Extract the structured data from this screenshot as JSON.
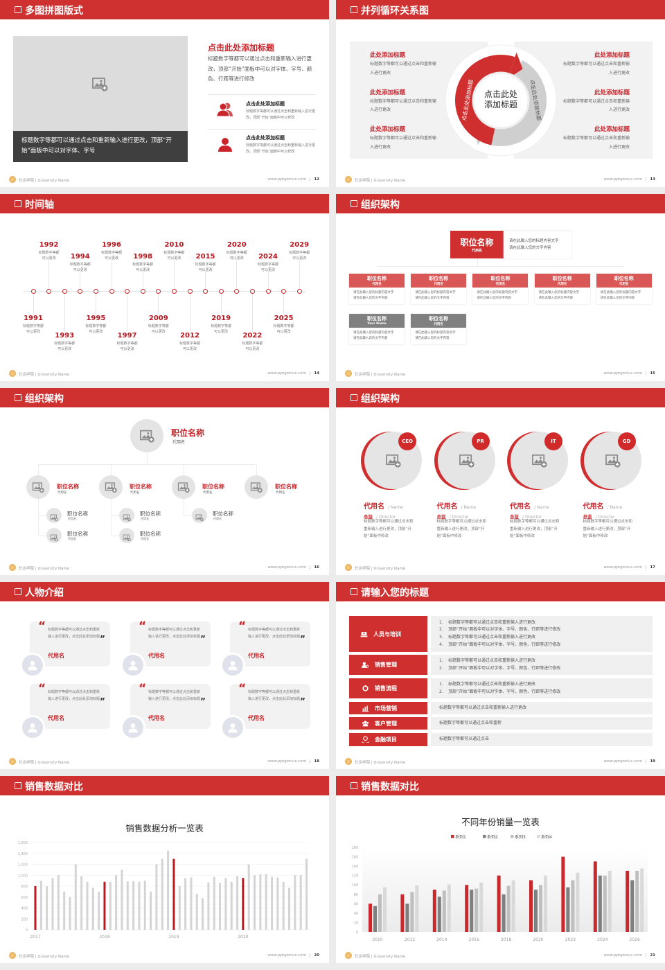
{
  "footer": {
    "school": "长治学院 | University Name",
    "site": "www.pptgenius.com",
    "separator": "|"
  },
  "colors": {
    "accent": "#cf3030",
    "dark_caption": "#3f3f3f",
    "panel": "#f2f2f2",
    "gray_header": "#808080"
  },
  "slides": [
    {
      "title": "多图拼图版式",
      "page": "12",
      "caption": "标题数字等都可以通过点击和重新输入进行更改，顶部“开始”面板中可以对字体、字号",
      "heading": "点击此处添加标题",
      "paragraph": "标题数字等都可以通过点击和重新输入进行更改，顶部“开始”面板中可以对字体、字号、颜色、行距等进行修改",
      "items": [
        {
          "icon": "users-icon",
          "title": "点击此处添加标题",
          "text": "标题数字等都可以通过点击和重新输入进行更改，顶部“开始”面板中可以修改"
        },
        {
          "icon": "user-icon",
          "title": "点击此处添加标题",
          "text": "标题数字等都可以通过点击和重新输入进行更改，顶部“开始”面板中可以修改"
        }
      ]
    },
    {
      "title": "并列循环关系图",
      "page": "13",
      "center_lines": [
        "点击此处",
        "添加标题"
      ],
      "arc_left": "点击此处添加标题",
      "arc_right": "点击此处添加标题",
      "left_items": [
        {
          "title": "此处添加标题",
          "text": "标题数字等都可以通过点击和重新输入进行更改"
        },
        {
          "title": "此处添加标题",
          "text": "标题数字等都可以通过点击和重新输入进行更改"
        },
        {
          "title": "此处添加标题",
          "text": "标题数字等都可以通过点击和重新输入进行更改"
        }
      ],
      "right_items": [
        {
          "title": "此处添加标题",
          "text": "标题数字等都可以通过点击和重新输入进行更改"
        },
        {
          "title": "此处添加标题",
          "text": "标题数字等都可以通过点击和重新输入进行更改"
        },
        {
          "title": "此处添加标题",
          "text": "标题数字等都可以通过点击和重新输入进行更改"
        }
      ]
    },
    {
      "title": "时间轴",
      "page": "14",
      "events": [
        {
          "year": "1991",
          "text": "标题数字等都可以更改"
        },
        {
          "year": "1992",
          "text": "标题数字等都可以更改"
        },
        {
          "year": "1993",
          "text": "标题数字等都可以更改"
        },
        {
          "year": "1994",
          "text": "标题数字等都可以更改"
        },
        {
          "year": "1995",
          "text": "标题数字等都可以更改"
        },
        {
          "year": "1996",
          "text": "标题数字等都可以更改"
        },
        {
          "year": "1997",
          "text": "标题数字等都可以更改"
        },
        {
          "year": "1998",
          "text": "标题数字等都可以更改"
        },
        {
          "year": "2009",
          "text": "标题数字等都可以更改"
        },
        {
          "year": "2010",
          "text": "标题数字等都可以更改"
        },
        {
          "year": "2012",
          "text": "标题数字等都可以更改"
        },
        {
          "year": "2015",
          "text": "标题数字等都可以更改"
        },
        {
          "year": "2019",
          "text": "标题数字等都可以更改"
        },
        {
          "year": "2020",
          "text": "标题数字等都可以更改"
        },
        {
          "year": "2022",
          "text": "标题数字等都可以更改"
        },
        {
          "year": "2024",
          "text": "标题数字等都可以更改"
        },
        {
          "year": "2025",
          "text": "标题数字等都可以更改"
        },
        {
          "year": "2029",
          "text": "标题数字等都可以更改"
        }
      ]
    },
    {
      "title": "组织架构",
      "page": "15",
      "top": {
        "title": "职位名称",
        "sub": "代用名",
        "desc": [
          "请在此输入您的标题内容文字",
          "请在此输入您的文字内容"
        ]
      },
      "boxes": [
        {
          "variant": "red",
          "title": "职位名称",
          "sub": "代用名",
          "desc": [
            "请在此输入您的标题内容文字",
            "请在此输入您的文字内容"
          ]
        },
        {
          "variant": "red",
          "title": "职位名称",
          "sub": "代用名",
          "desc": [
            "请在此输入您的标题内容文字",
            "请在此输入您的文字内容"
          ]
        },
        {
          "variant": "red",
          "title": "职位名称",
          "sub": "代用名",
          "desc": [
            "请在此输入您的标题内容文字",
            "请在此输入您的文字内容"
          ]
        },
        {
          "variant": "red",
          "title": "职位名称",
          "sub": "代用名",
          "desc": [
            "请在此输入您的标题内容文字",
            "请在此输入您的文字内容"
          ]
        },
        {
          "variant": "red",
          "title": "职位名称",
          "sub": "代用名",
          "desc": [
            "请在此输入您的标题内容文字",
            "请在此输入您的文字内容"
          ]
        },
        {
          "variant": "gray",
          "title": "职位名称",
          "sub": "Your Name",
          "desc": [
            "请在此输入您的标题内容文字",
            "请在此输入您的文字内容"
          ]
        },
        {
          "variant": "gray",
          "title": "职位名称",
          "sub": "代用名",
          "desc": [
            "请在此输入您的标题内容文字",
            "请在此输入您的文字内容"
          ]
        }
      ]
    },
    {
      "title": "组织架构",
      "page": "16",
      "top": {
        "title": "职位名称",
        "sub": "代用名"
      },
      "branches": [
        {
          "title": "职位名称",
          "sub": "代用名",
          "children": [
            {
              "title": "职位名称",
              "sub": "代用名"
            },
            {
              "title": "职位名称",
              "sub": "代用名"
            }
          ]
        },
        {
          "title": "职位名称",
          "sub": "代用名",
          "children": [
            {
              "title": "职位名称",
              "sub": "代用名"
            },
            {
              "title": "职位名称",
              "sub": "代用名"
            }
          ]
        },
        {
          "title": "职位名称",
          "sub": "代用名",
          "children": [
            {
              "title": "职位名称",
              "sub": "代用名"
            }
          ]
        },
        {
          "title": "职位名称",
          "sub": "代用名",
          "children": []
        }
      ]
    },
    {
      "title": "组织架构",
      "page": "17",
      "members": [
        {
          "badge": "CEO",
          "name": "代用名",
          "name_en": "/ Name",
          "role": "总监",
          "role_en": "/  Director",
          "text": "标题数字等都可以通过点击和重新输入进行更改，顶部“开始”面板中修改"
        },
        {
          "badge": "PR",
          "name": "代用名",
          "name_en": "/ Name",
          "role": "总监",
          "role_en": "/  Director",
          "text": "标题数字等都可以通过点击和重新输入进行更改，顶部“开始”面板中修改"
        },
        {
          "badge": "IT",
          "name": "代用名",
          "name_en": "/ Name",
          "role": "总监",
          "role_en": "/  Director",
          "text": "标题数字等都可以通过点击和重新输入进行更改，顶部“开始”面板中修改"
        },
        {
          "badge": "GD",
          "name": "代用名",
          "name_en": "/ Name",
          "role": "总监",
          "role_en": "/  Director",
          "text": "标题数字等都可以通过点击和重新输入进行更改，顶部“开始”面板中修改"
        }
      ]
    },
    {
      "title": "人物介绍",
      "page": "18",
      "quote_open": "“",
      "quote_close": "”",
      "cards": [
        {
          "text": "标题数字等都可以通过点击和重新输入进行更改，点击此处添加标题",
          "name": "代用名"
        },
        {
          "text": "标题数字等都可以通过点击和重新输入进行更改，点击此处添加标题",
          "name": "代用名"
        },
        {
          "text": "标题数字等都可以通过点击和重新输入进行更改，点击此处添加标题",
          "name": "代用名"
        },
        {
          "text": "标题数字等都可以通过点击和重新输入进行更改，点击此处添加标题",
          "name": "代用名"
        },
        {
          "text": "标题数字等都可以通过点击和重新输入进行更改，点击此处添加标题",
          "name": "代用名"
        },
        {
          "text": "标题数字等都可以通过点击和重新输入进行更改，点击此处添加标题",
          "name": "代用名"
        }
      ]
    },
    {
      "title": "请输入您的标题",
      "page": "19",
      "rows": [
        {
          "icon": "training-icon",
          "label": "人员与培训",
          "lines": [
            {
              "n": "1.",
              "text": "标题数字等都可以通过点击和重新输入进行更改"
            },
            {
              "n": "2.",
              "text": "顶部“开始”面板中可以对字体、字号、颜色、行距等进行修改"
            },
            {
              "n": "3.",
              "text": "标题数字等都可以通过点击和重新输入进行更改"
            },
            {
              "n": "4.",
              "text": "顶部“开始”面板中可以对字体、字号、颜色、行距等进行修改"
            }
          ]
        },
        {
          "icon": "sales-management-icon",
          "label": "销售管理",
          "lines": [
            {
              "n": "1.",
              "text": "标题数字等都可以通过点击和重新输入进行更改"
            },
            {
              "n": "2.",
              "text": "顶部“开始”面板中可以对字体、字号、颜色、行距等进行修改"
            }
          ]
        },
        {
          "icon": "process-icon",
          "label": "销售流程",
          "lines": [
            {
              "n": "1.",
              "text": "标题数字等都可以通过点击和重新输入进行更改"
            },
            {
              "n": "2.",
              "text": "顶部“开始”面板中可以对字体、字号、颜色、行距等进行修改"
            }
          ]
        },
        {
          "icon": "bar-chart-icon",
          "label": "市场营销",
          "lines": [
            {
              "n": "",
              "text": "标题数字等都可以通过点击和重新输入进行更改"
            }
          ]
        },
        {
          "icon": "customers-icon",
          "label": "客户管理",
          "lines": [
            {
              "n": "",
              "text": "标题数字等都可以通过点击和重新"
            }
          ]
        },
        {
          "icon": "finance-icon",
          "label": "金融项目",
          "lines": [
            {
              "n": "",
              "text": "标题数字等都可以通过点击"
            }
          ]
        }
      ]
    },
    {
      "title": "销售数据对比",
      "page": "20"
    },
    {
      "title": "销售数据对比",
      "page": "21"
    }
  ],
  "chart_data": [
    {
      "type": "bar",
      "title": "销售数据分析一览表",
      "ylim": [
        0,
        1600
      ],
      "y_ticks": [
        "0",
        "200",
        "400",
        "600",
        "800",
        "1,000",
        "1,200",
        "1,400",
        "1,600"
      ],
      "x_tick_labels": [
        "2017",
        "2018",
        "2019",
        "2020"
      ],
      "bars_per_label": 12,
      "highlight_indices": [
        0,
        12,
        24,
        36
      ],
      "colors": {
        "highlight": "#c0161d",
        "normal": "#d4d4d4"
      },
      "grid": true,
      "values": [
        800,
        900,
        800,
        950,
        1000,
        700,
        600,
        1200,
        980,
        880,
        770,
        700,
        880,
        880,
        1000,
        1100,
        890,
        890,
        880,
        900,
        700,
        1200,
        1300,
        1450,
        1300,
        800,
        950,
        960,
        660,
        580,
        870,
        970,
        860,
        950,
        880,
        980,
        950,
        1200,
        1000,
        1020,
        1020,
        970,
        960,
        880,
        770,
        1000,
        1000,
        1300
      ]
    },
    {
      "type": "bar",
      "title": "不同年份销量一览表",
      "ylim": [
        0,
        180
      ],
      "y_ticks": [
        "0",
        "20",
        "40",
        "60",
        "80",
        "100",
        "120",
        "140",
        "160",
        "180"
      ],
      "categories": [
        "2010",
        "2012",
        "2014",
        "2016",
        "2018",
        "2020",
        "2022",
        "2024",
        "2026"
      ],
      "legend": "top",
      "grid": false,
      "series": [
        {
          "name": "系列1",
          "color": "#c9282d",
          "values": [
            60,
            80,
            90,
            100,
            120,
            110,
            160,
            150,
            130
          ]
        },
        {
          "name": "系列2",
          "color": "#7f7f7f",
          "values": [
            55,
            60,
            75,
            90,
            80,
            90,
            95,
            120,
            110
          ]
        },
        {
          "name": "系列3",
          "color": "#bfbfbf",
          "values": [
            80,
            85,
            88,
            92,
            98,
            100,
            110,
            120,
            130
          ]
        },
        {
          "name": "系列4",
          "color": "#d9d9d9",
          "values": [
            95,
            99,
            101,
            105,
            110,
            120,
            126,
            130,
            135
          ]
        }
      ]
    }
  ]
}
